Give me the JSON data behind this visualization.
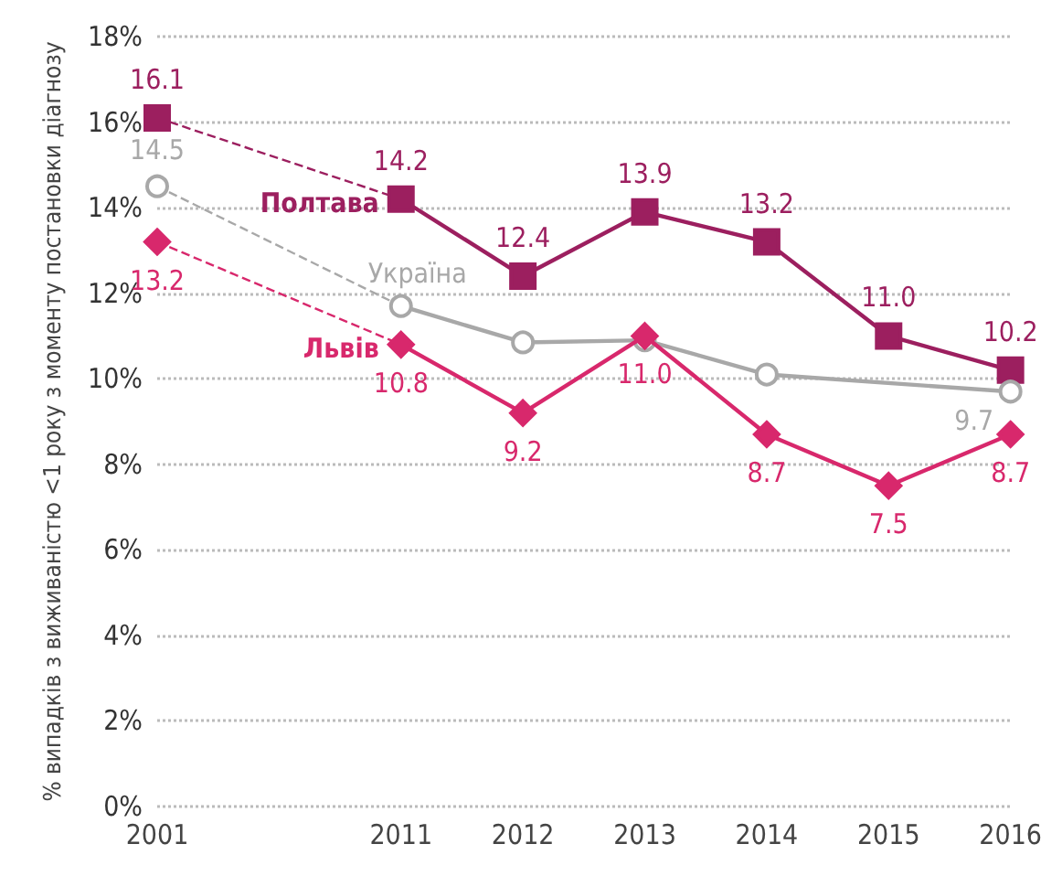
{
  "chart_data": {
    "type": "line",
    "ylabel": "% випадків з виживаністю <1 року з моменту постановки діагнозу",
    "categories": [
      "2001",
      null,
      "2011",
      "2012",
      "2013",
      "2014",
      "2015",
      "2016"
    ],
    "series": [
      {
        "name": "Полтава",
        "color": "#9c1f5f",
        "marker": "square",
        "values": [
          16.1,
          null,
          14.2,
          12.4,
          13.9,
          13.2,
          11.0,
          10.2
        ],
        "value_labels": [
          "16.1",
          null,
          "14.2",
          "12.4",
          "13.9",
          "13.2",
          "11.0",
          "10.2"
        ]
      },
      {
        "name": "Україна",
        "color": "#a8a8a8",
        "marker": "circle",
        "values": [
          14.5,
          null,
          11.7,
          10.85,
          10.9,
          10.1,
          null,
          9.7
        ],
        "value_labels": [
          "14.5",
          null,
          null,
          null,
          null,
          null,
          null,
          "9.7"
        ]
      },
      {
        "name": "Львів",
        "color": "#d8286c",
        "marker": "diamond",
        "values": [
          13.2,
          null,
          10.8,
          9.2,
          11.0,
          8.7,
          7.5,
          8.7
        ],
        "value_labels": [
          "13.2",
          null,
          "10.8",
          "9.2",
          "11.0",
          "8.7",
          "7.5",
          "8.7"
        ]
      }
    ],
    "ylim": [
      0,
      18
    ],
    "yticks": [
      {
        "value": 0,
        "label": "0%"
      },
      {
        "value": 2,
        "label": "2%"
      },
      {
        "value": 4,
        "label": "4%"
      },
      {
        "value": 6,
        "label": "6%"
      },
      {
        "value": 8,
        "label": "8%"
      },
      {
        "value": 10,
        "label": "10%"
      },
      {
        "value": 12,
        "label": "12%"
      },
      {
        "value": 14,
        "label": "14%"
      },
      {
        "value": 16,
        "label": "16%"
      },
      {
        "value": 18,
        "label": "18%"
      }
    ],
    "grid": "y",
    "legend": false,
    "line_style": "solid"
  }
}
